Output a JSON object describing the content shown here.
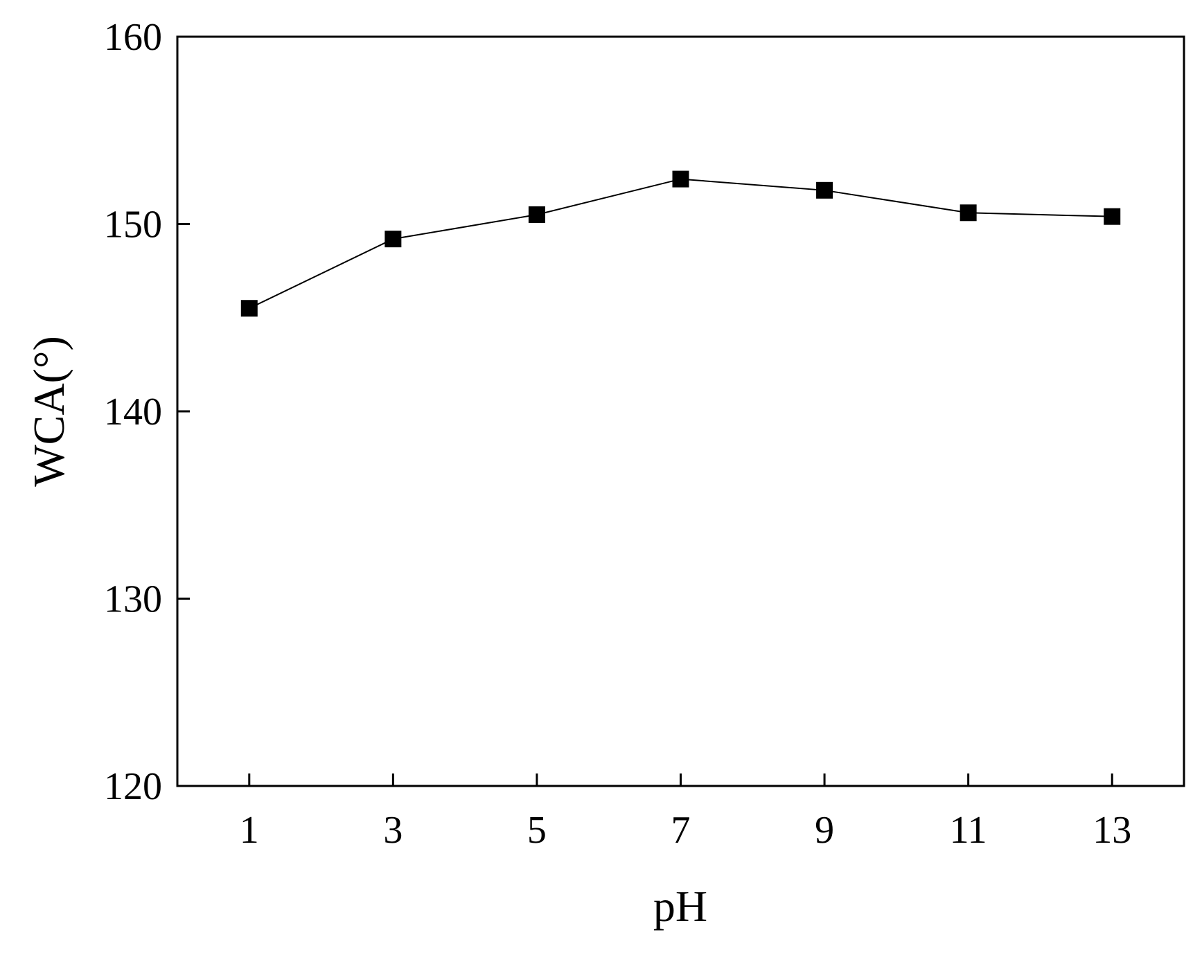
{
  "chart_data": {
    "type": "line",
    "title": "",
    "xlabel": "pH",
    "ylabel": "WCA(°)",
    "x": [
      1,
      3,
      5,
      7,
      9,
      11,
      13
    ],
    "xticks": [
      "1",
      "3",
      "5",
      "7",
      "9",
      "11",
      "13"
    ],
    "yticks": [
      "120",
      "130",
      "140",
      "150",
      "160"
    ],
    "xlim": [
      0,
      14
    ],
    "ylim": [
      120,
      160
    ],
    "series": [
      {
        "values": [
          145.5,
          149.2,
          150.5,
          152.4,
          151.8,
          150.6,
          150.4
        ],
        "marker": "square",
        "color": "#000000"
      }
    ],
    "grid": false,
    "legend": "none"
  }
}
